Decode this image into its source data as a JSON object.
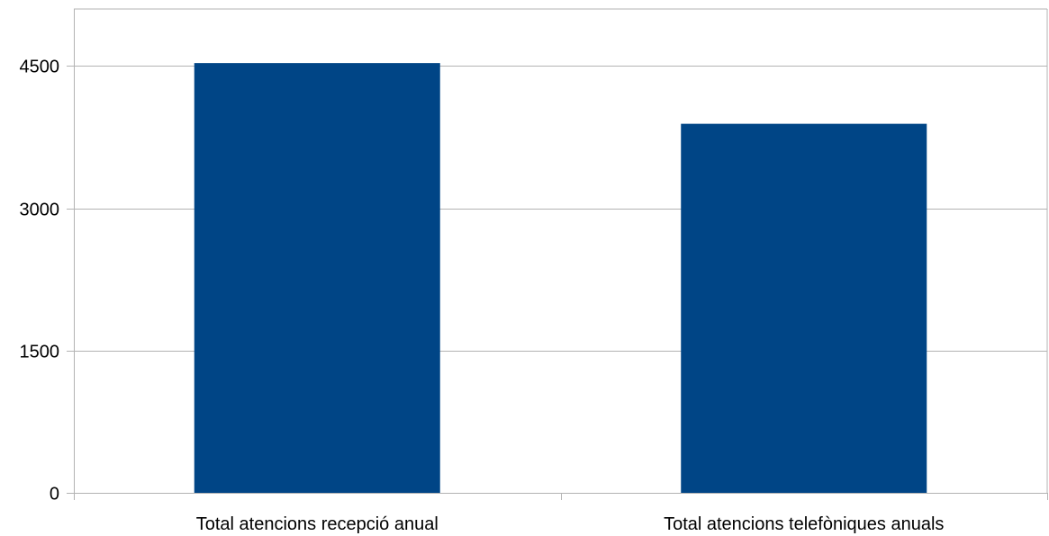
{
  "chart_data": {
    "type": "bar",
    "categories": [
      "Total atencions recepció anual",
      "Total atencions telefòniques anuals"
    ],
    "values": [
      4530,
      3890
    ],
    "ylim": [
      0,
      5100
    ],
    "yticks": [
      0,
      1500,
      3000,
      4500
    ],
    "grid": true,
    "legend": "none",
    "colors": {
      "bar": "#004586"
    }
  }
}
